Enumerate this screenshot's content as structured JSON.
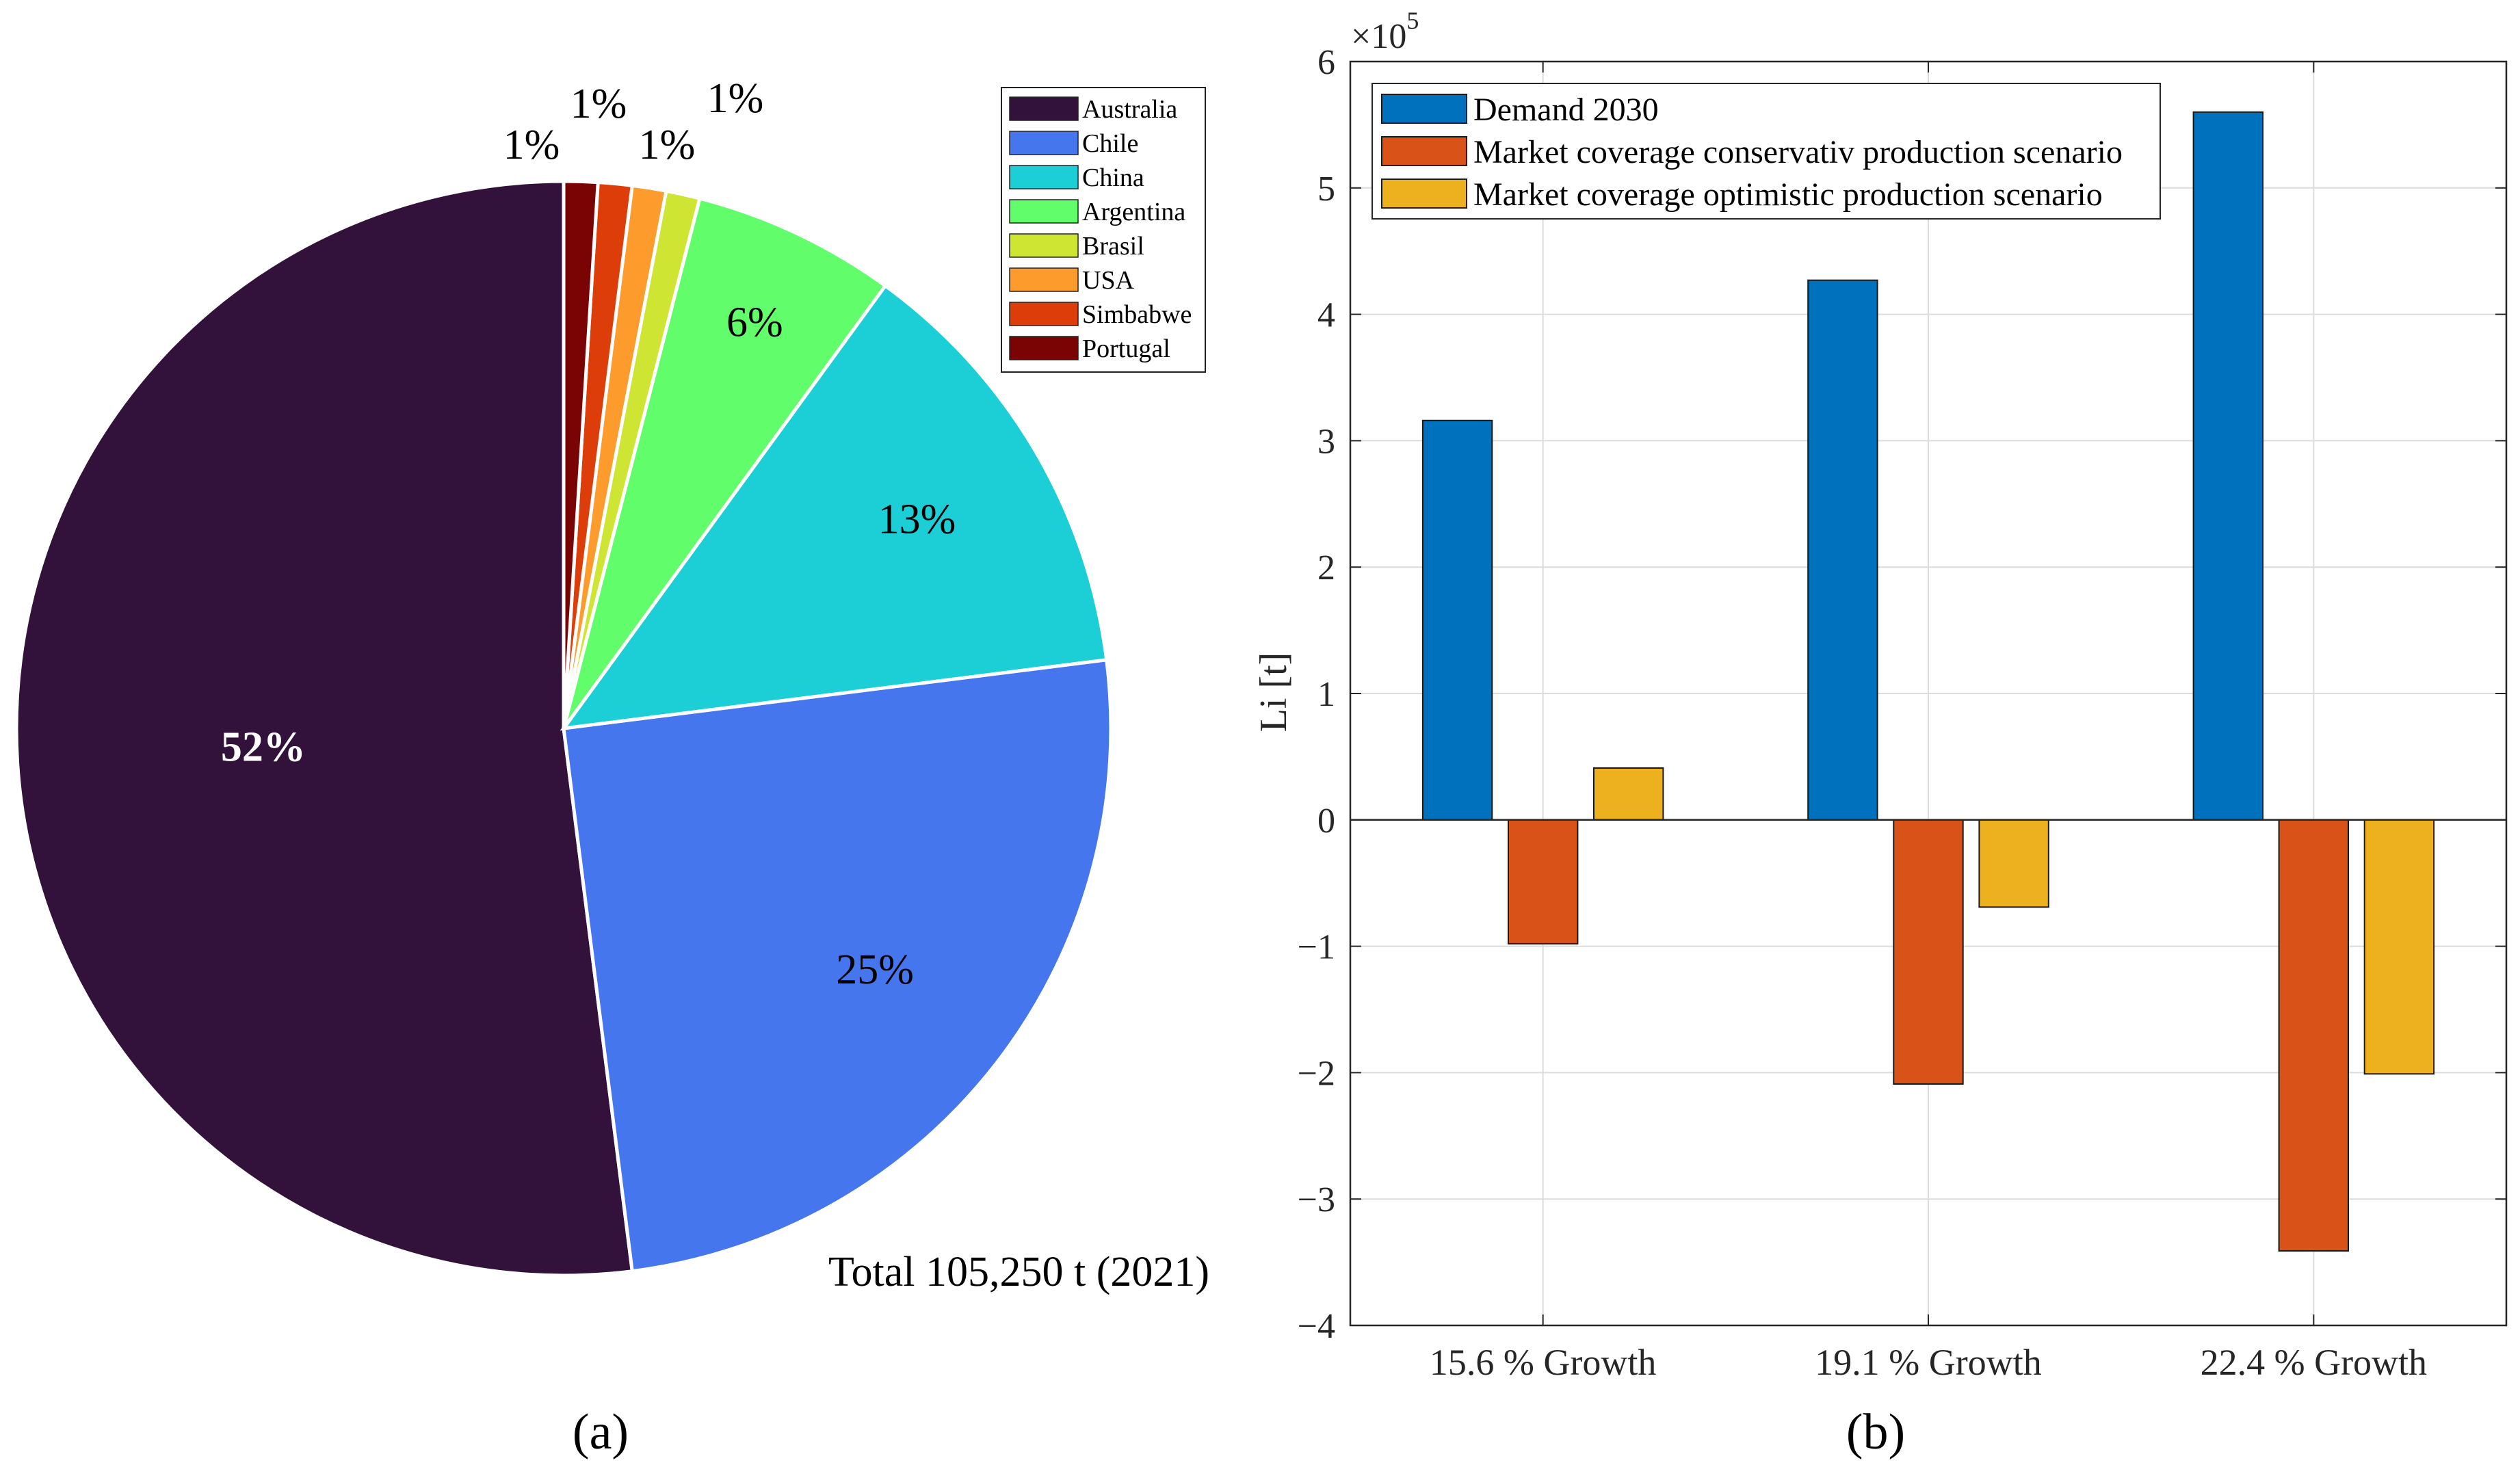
{
  "figure": {
    "panel_a_label": "(a)",
    "panel_b_label": "(b)"
  },
  "chart_data": [
    {
      "type": "pie",
      "panel": "a",
      "title": "",
      "annotation": "Total 105,250 t (2021)",
      "slices": [
        {
          "name": "Australia",
          "pct": 52,
          "label": "52%",
          "color": "#32123a",
          "label_color": "#ffffff",
          "bold": true
        },
        {
          "name": "Chile",
          "pct": 25,
          "label": "25%",
          "color": "#4676ee",
          "label_color": "#000000",
          "bold": false
        },
        {
          "name": "China",
          "pct": 13,
          "label": "13%",
          "color": "#1ccfd7",
          "label_color": "#000000",
          "bold": false
        },
        {
          "name": "Argentina",
          "pct": 6,
          "label": "6%",
          "color": "#62fd6a",
          "label_color": "#000000",
          "bold": false
        },
        {
          "name": "Brasil",
          "pct": 1,
          "label": "1%",
          "color": "#cfe534",
          "label_color": "#000000",
          "bold": false
        },
        {
          "name": "USA",
          "pct": 1,
          "label": "1%",
          "color": "#fe9b2d",
          "label_color": "#000000",
          "bold": false
        },
        {
          "name": "Simbabwe",
          "pct": 1,
          "label": "1%",
          "color": "#dd3d08",
          "label_color": "#000000",
          "bold": false
        },
        {
          "name": "Portugal",
          "pct": 1,
          "label": "1%",
          "color": "#7a0403",
          "label_color": "#000000",
          "bold": false
        }
      ],
      "legend": [
        "Australia",
        "Chile",
        "China",
        "Argentina",
        "Brasil",
        "USA",
        "Simbabwe",
        "Portugal"
      ],
      "legend_position": "top-right"
    },
    {
      "type": "bar",
      "panel": "b",
      "categories": [
        "15.6 % Growth",
        "19.1 % Growth",
        "22.4 % Growth"
      ],
      "series": [
        {
          "name": "Demand 2030",
          "color": "#0072bd",
          "values": [
            316000,
            427000,
            560000
          ]
        },
        {
          "name": "Market coverage conservativ production scenario",
          "color": "#d95319",
          "values": [
            -98000,
            -209000,
            -341000
          ]
        },
        {
          "name": "Market coverage optimistic production scenario",
          "color": "#edb120",
          "values": [
            41000,
            -69000,
            -201000
          ]
        }
      ],
      "ylabel": "Li [t]",
      "xlabel": "",
      "ylim": [
        -400000,
        600000
      ],
      "yticks": [
        -4,
        -3,
        -2,
        -1,
        0,
        1,
        2,
        3,
        4,
        5,
        6
      ],
      "ytick_labels": [
        "−4",
        "−3",
        "−2",
        "−1",
        "0",
        "1",
        "2",
        "3",
        "4",
        "5",
        "6"
      ],
      "yscale_factor": 100000,
      "yscale_label_base": "×10",
      "yscale_label_exp": "5",
      "grid": true,
      "legend_position": "top-left"
    }
  ]
}
